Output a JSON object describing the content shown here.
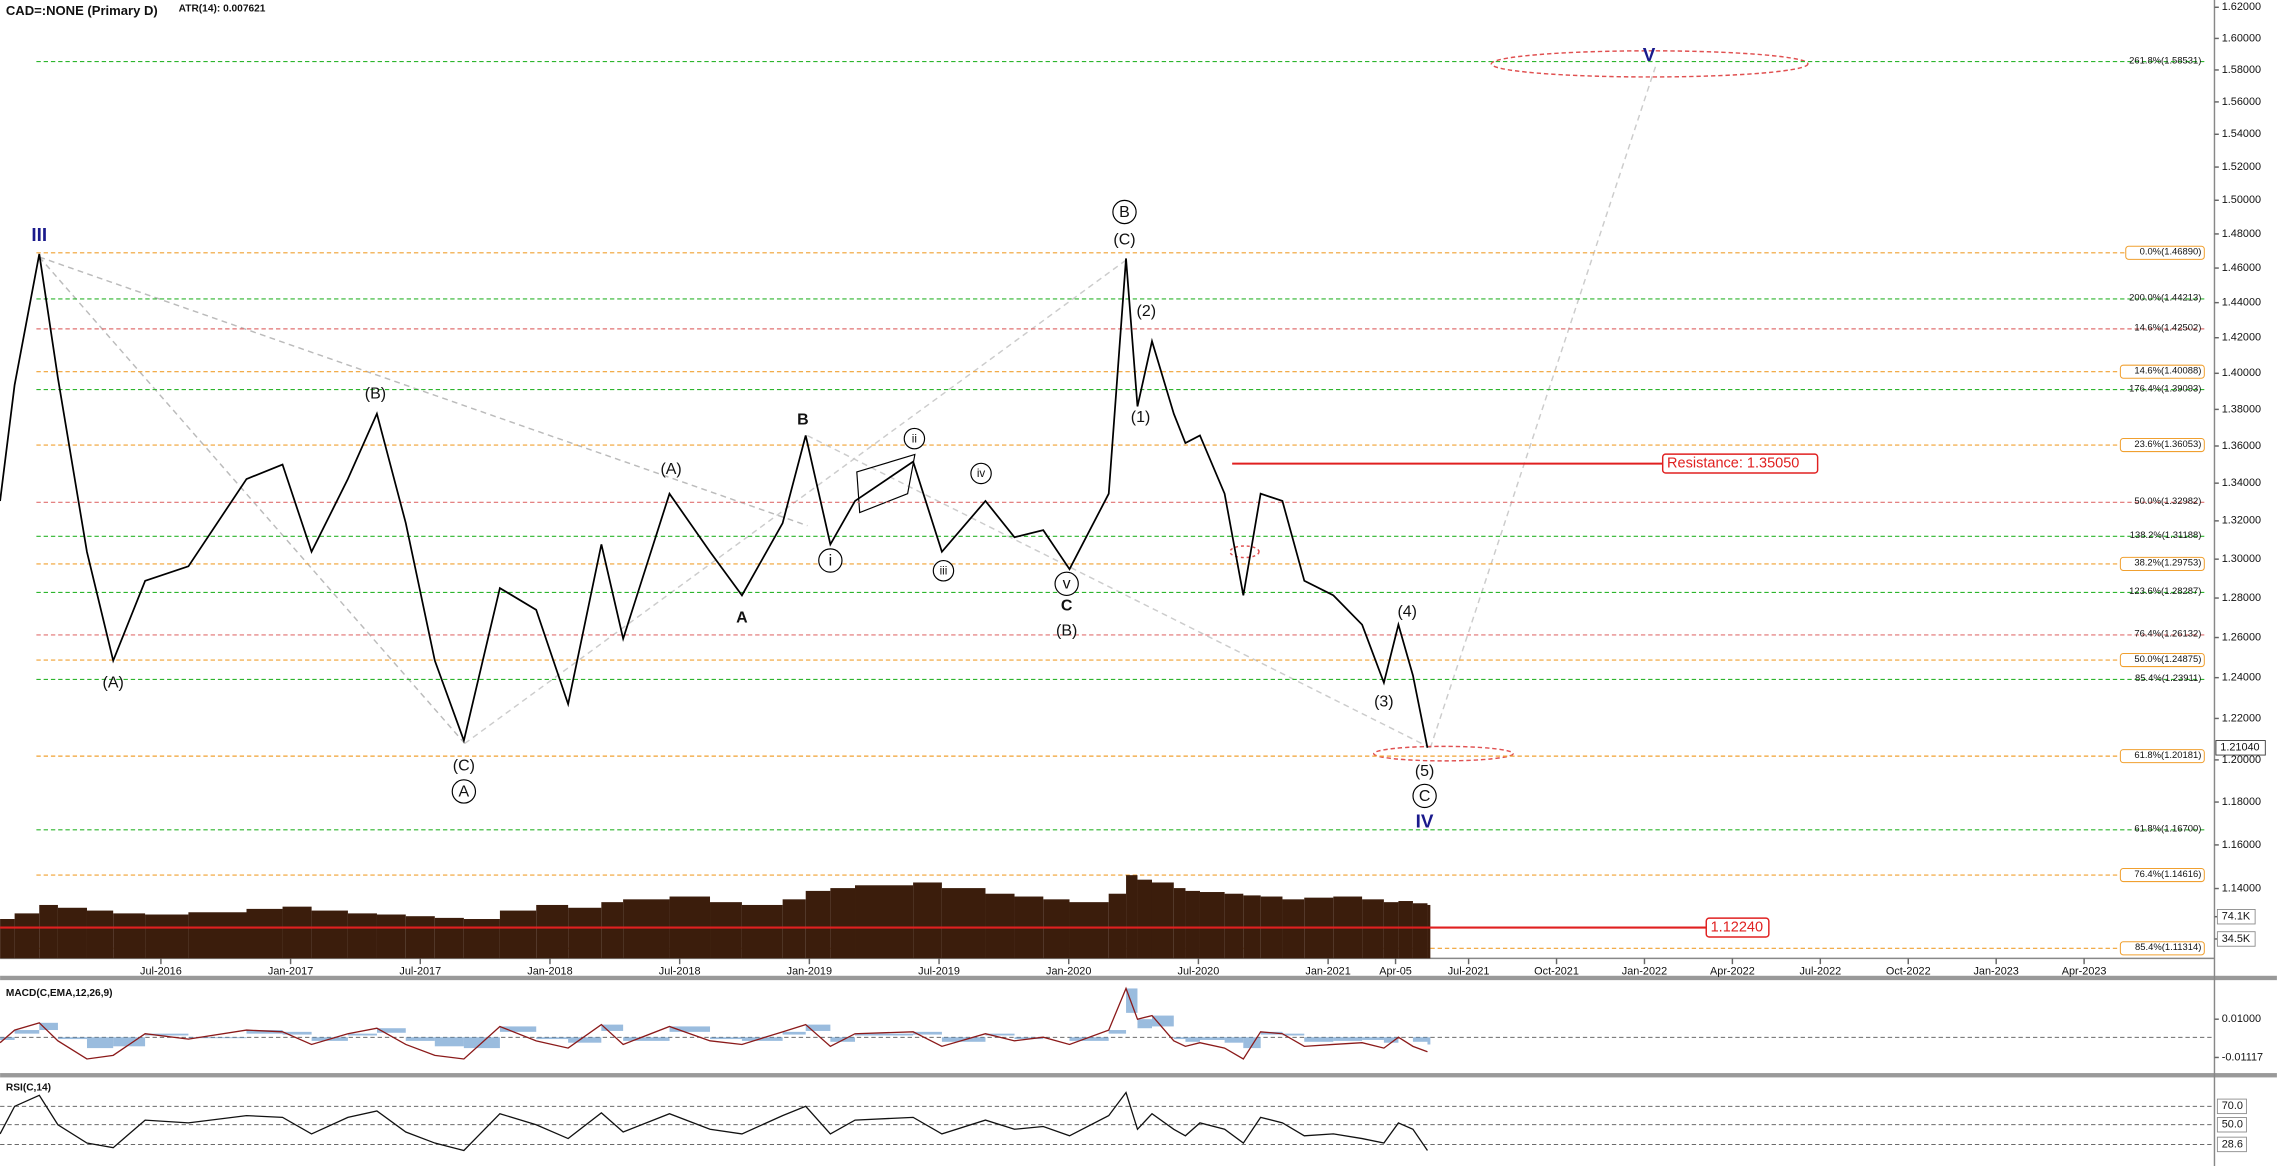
{
  "chart_data": [
    {
      "type": "line",
      "title": "CAD=:NONE (Primary D)",
      "subtitle": "ATR(14): 0.007621",
      "color": "#000000",
      "log_scale": true,
      "x": [
        2015.88,
        2015.936,
        2016.031,
        2016.103,
        2016.215,
        2016.316,
        2016.439,
        2016.606,
        2016.83,
        2016.969,
        2017.081,
        2017.221,
        2017.333,
        2017.444,
        2017.556,
        2017.668,
        2017.807,
        2017.947,
        2018.07,
        2018.198,
        2018.282,
        2018.461,
        2018.617,
        2018.74,
        2018.897,
        2018.986,
        2019.081,
        2019.176,
        2019.4,
        2019.511,
        2019.679,
        2019.791,
        2019.902,
        2020.003,
        2020.154,
        2020.221,
        2020.265,
        2020.321,
        2020.405,
        2020.45,
        2020.506,
        2020.601,
        2020.673,
        2020.74,
        2020.824,
        2020.908,
        2021.02,
        2021.131,
        2021.215,
        2021.271,
        2021.327,
        2021.383
      ],
      "values": [
        1.3305,
        1.3935,
        1.4682,
        1.3975,
        1.3038,
        1.2484,
        1.2888,
        1.2963,
        1.3422,
        1.35,
        1.3038,
        1.3422,
        1.3776,
        1.3188,
        1.2484,
        1.2093,
        1.2851,
        1.274,
        1.227,
        1.3077,
        1.2594,
        1.3344,
        1.3038,
        1.2814,
        1.3188,
        1.3657,
        1.3077,
        1.3305,
        1.3516,
        1.3038,
        1.3305,
        1.3114,
        1.3151,
        1.2948,
        1.3344,
        1.4656,
        1.3816,
        1.418,
        1.3776,
        1.3616,
        1.3657,
        1.3344,
        1.2814,
        1.3344,
        1.3305,
        1.2888,
        1.2814,
        1.2665,
        1.2375,
        1.2665,
        1.2411,
        1.2058
      ],
      "last_price_label": "1.21040",
      "xlim": [
        2015.88,
        2023.6
      ],
      "xticks": [
        {
          "value": 2016.5,
          "label": "Jul-2016"
        },
        {
          "value": 2017,
          "label": "Jan-2017"
        },
        {
          "value": 2017.5,
          "label": "Jul-2017"
        },
        {
          "value": 2018,
          "label": "Jan-2018"
        },
        {
          "value": 2018.5,
          "label": "Jul-2018"
        },
        {
          "value": 2019,
          "label": "Jan-2019"
        },
        {
          "value": 2019.5,
          "label": "Jul-2019"
        },
        {
          "value": 2020,
          "label": "Jan-2020"
        },
        {
          "value": 2020.5,
          "label": "Jul-2020"
        },
        {
          "value": 2021,
          "label": "Jan-2021"
        },
        {
          "value": 2021.26,
          "label": "Apr-05"
        },
        {
          "value": 2021.5,
          "label": "Jul-2021"
        },
        {
          "value": 2021.75,
          "label": "Oct-2021"
        },
        {
          "value": 2022,
          "label": "Jan-2022"
        },
        {
          "value": 2022.25,
          "label": "Apr-2022"
        },
        {
          "value": 2022.5,
          "label": "Jul-2022"
        },
        {
          "value": 2022.75,
          "label": "Oct-2022"
        },
        {
          "value": 2023,
          "label": "Jan-2023"
        },
        {
          "value": 2023.25,
          "label": "Apr-2023"
        }
      ],
      "ylim": [
        1.1087,
        1.6247
      ],
      "yticks": [
        {
          "value": 1.62,
          "label": "1.62000"
        },
        {
          "value": 1.6,
          "label": "1.60000"
        },
        {
          "value": 1.58,
          "label": "1.58000"
        },
        {
          "value": 1.56,
          "label": "1.56000"
        },
        {
          "value": 1.54,
          "label": "1.54000"
        },
        {
          "value": 1.52,
          "label": "1.52000"
        },
        {
          "value": 1.5,
          "label": "1.50000"
        },
        {
          "value": 1.48,
          "label": "1.48000"
        },
        {
          "value": 1.46,
          "label": "1.46000"
        },
        {
          "value": 1.44,
          "label": "1.44000"
        },
        {
          "value": 1.42,
          "label": "1.42000"
        },
        {
          "value": 1.4,
          "label": "1.40000"
        },
        {
          "value": 1.38,
          "label": "1.38000"
        },
        {
          "value": 1.36,
          "label": "1.36000"
        },
        {
          "value": 1.34,
          "label": "1.34000"
        },
        {
          "value": 1.32,
          "label": "1.32000"
        },
        {
          "value": 1.3,
          "label": "1.30000"
        },
        {
          "value": 1.28,
          "label": "1.28000"
        },
        {
          "value": 1.26,
          "label": "1.26000"
        },
        {
          "value": 1.24,
          "label": "1.24000"
        },
        {
          "value": 1.22,
          "label": "1.22000"
        },
        {
          "value": 1.2,
          "label": "1.20000"
        },
        {
          "value": 1.18,
          "label": "1.18000"
        },
        {
          "value": 1.16,
          "label": "1.16000"
        },
        {
          "value": 1.14,
          "label": "1.14000"
        }
      ],
      "levels": [
        {
          "value": 1.58531,
          "label": "261.8%(1.58531)",
          "color": "#2db52d"
        },
        {
          "value": 1.4689,
          "label": "0.0%(1.46890)",
          "color": "#f0a030"
        },
        {
          "value": 1.44213,
          "label": "200.0%(1.44213)",
          "color": "#2db52d"
        },
        {
          "value": 1.42502,
          "label": "14.6%(1.42502)",
          "color": "#e07070"
        },
        {
          "value": 1.40088,
          "label": "14.6%(1.40088)",
          "color": "#f0a030"
        },
        {
          "value": 1.39093,
          "label": "176.4%(1.39093)",
          "color": "#2db52d"
        },
        {
          "value": 1.36053,
          "label": "23.6%(1.36053)",
          "color": "#f0a030"
        },
        {
          "value": 1.32982,
          "label": "50.0%(1.32982)",
          "color": "#e07070"
        },
        {
          "value": 1.31188,
          "label": "138.2%(1.31188)",
          "color": "#2db52d"
        },
        {
          "value": 1.29753,
          "label": "38.2%(1.29753)",
          "color": "#f0a030"
        },
        {
          "value": 1.28287,
          "label": "123.6%(1.28287)",
          "color": "#2db52d"
        },
        {
          "value": 1.26132,
          "label": "76.4%(1.26132)",
          "color": "#e07070"
        },
        {
          "value": 1.24875,
          "label": "50.0%(1.24875)",
          "color": "#f0a030"
        },
        {
          "value": 1.23911,
          "label": "85.4%(1.23911)",
          "color": "#2db52d"
        },
        {
          "value": 1.20181,
          "label": "61.8%(1.20181)",
          "color": "#f0a030"
        },
        {
          "value": 1.167,
          "label": "61.8%(1.16700)",
          "color": "#2db52d"
        },
        {
          "value": 1.14616,
          "label": "76.4%(1.14616)",
          "color": "#f0a030"
        },
        {
          "value": 1.11314,
          "label": "85.4%(1.11314)",
          "color": "#f0a030"
        }
      ],
      "boxed_levels": [
        {
          "value": 1.3505,
          "label": "Resistance: 1.35050",
          "from": 2020.63,
          "color": "#e02020"
        },
        {
          "value": 1.1224,
          "label": "1.12240",
          "color": "#e02020"
        }
      ],
      "annotations": [
        {
          "text": "III",
          "x": 2016.031,
          "y": 1.4792,
          "color": "#1a1a8c",
          "big": true
        },
        {
          "text": "(A)",
          "x": 2016.316,
          "y": 1.2375
        },
        {
          "text": "(B)",
          "x": 2017.327,
          "y": 1.3888
        },
        {
          "text": "(C)",
          "x": 2017.668,
          "y": 1.1973
        },
        {
          "text": "A",
          "x": 2017.668,
          "y": 1.185,
          "circled": true
        },
        {
          "text": "(A)",
          "x": 2018.467,
          "y": 1.3475
        },
        {
          "text": "A",
          "x": 2018.74,
          "y": 1.2702,
          "bold": true
        },
        {
          "text": "B",
          "x": 2018.975,
          "y": 1.3744,
          "bold": true
        },
        {
          "text": "i",
          "x": 2019.081,
          "y": 1.2993,
          "circled": true
        },
        {
          "text": "ii",
          "x": 2019.405,
          "y": 1.364,
          "circled": true
        },
        {
          "text": "iii",
          "x": 2019.517,
          "y": 1.294,
          "circled": true
        },
        {
          "text": "iv",
          "x": 2019.662,
          "y": 1.3452,
          "circled": true
        },
        {
          "text": "v",
          "x": 2019.992,
          "y": 1.2873,
          "circled": true
        },
        {
          "text": "C",
          "x": 2019.992,
          "y": 1.2761,
          "bold": true
        },
        {
          "text": "(B)",
          "x": 2019.992,
          "y": 1.2636
        },
        {
          "text": "B",
          "x": 2020.215,
          "y": 1.493,
          "circled": true
        },
        {
          "text": "(C)",
          "x": 2020.215,
          "y": 1.4766
        },
        {
          "text": "(2)",
          "x": 2020.299,
          "y": 1.4353
        },
        {
          "text": "(1)",
          "x": 2020.277,
          "y": 1.3759
        },
        {
          "text": "(4)",
          "x": 2021.305,
          "y": 1.2732
        },
        {
          "text": "(3)",
          "x": 2021.215,
          "y": 1.2283
        },
        {
          "text": "(5)",
          "x": 2021.372,
          "y": 1.1946
        },
        {
          "text": "C",
          "x": 2021.372,
          "y": 1.1829,
          "circled": true
        },
        {
          "text": "IV",
          "x": 2021.372,
          "y": 1.1708,
          "color": "#1a1a8c",
          "big": true
        },
        {
          "text": "V",
          "x": 2022.013,
          "y": 1.5894,
          "color": "#1a1a8c",
          "big": true
        }
      ]
    },
    {
      "type": "bar",
      "color": "#3b1d0c",
      "values": [
        70,
        80,
        95,
        90,
        85,
        80,
        78,
        82,
        88,
        92,
        85,
        80,
        78,
        75,
        72,
        70,
        85,
        95,
        90,
        100,
        105,
        110,
        100,
        95,
        105,
        120,
        125,
        130,
        135,
        125,
        115,
        110,
        105,
        100,
        115,
        148,
        140,
        135,
        125,
        120,
        118,
        115,
        112,
        110,
        105,
        108,
        110,
        105,
        100,
        102,
        98,
        95
      ],
      "ylim": [
        0,
        155
      ],
      "yticks": [
        {
          "value": 74.1,
          "label": "74.1K"
        },
        {
          "value": 34.5,
          "label": "34.5K"
        }
      ]
    },
    {
      "type": "line",
      "title": "MACD(C,EMA,12,26,9)",
      "color": "#8b1a1a",
      "values": [
        -0.003,
        0.004,
        0.008,
        -0.002,
        -0.012,
        -0.01,
        0.002,
        -0.001,
        0.004,
        0.003,
        -0.004,
        0.002,
        0.005,
        -0.004,
        -0.01,
        -0.012,
        0.006,
        -0.002,
        -0.006,
        0.007,
        -0.004,
        0.006,
        -0.002,
        -0.004,
        0.003,
        0.007,
        -0.005,
        0.002,
        0.003,
        -0.005,
        0.002,
        -0.002,
        0,
        -0.004,
        0.004,
        0.027,
        0.01,
        0.012,
        -0.002,
        -0.005,
        -0.003,
        -0.006,
        -0.012,
        0.003,
        0.002,
        -0.005,
        -0.004,
        -0.003,
        -0.006,
        0,
        -0.005,
        -0.008
      ],
      "ylim": [
        -0.019,
        0.0308
      ],
      "yticks": [
        {
          "value": 0.01,
          "label": "0.01000"
        },
        {
          "value": -0.01117,
          "label": "-0.01117"
        }
      ]
    },
    {
      "type": "line",
      "title": "RSI(C,14)",
      "color": "#111111",
      "values": [
        40,
        70,
        82,
        50,
        30,
        25,
        55,
        52,
        60,
        58,
        40,
        58,
        65,
        42,
        30,
        22,
        62,
        50,
        35,
        63,
        42,
        62,
        45,
        40,
        60,
        70,
        40,
        55,
        58,
        40,
        55,
        45,
        48,
        38,
        60,
        85,
        45,
        62,
        45,
        38,
        52,
        45,
        30,
        58,
        52,
        38,
        40,
        35,
        30,
        52,
        45,
        22
      ],
      "ylim": [
        6.7,
        98.3
      ],
      "yticks": [
        {
          "value": 70,
          "label": "70.0"
        },
        {
          "value": 50,
          "label": "50.0"
        },
        28.6
      ]
    }
  ]
}
